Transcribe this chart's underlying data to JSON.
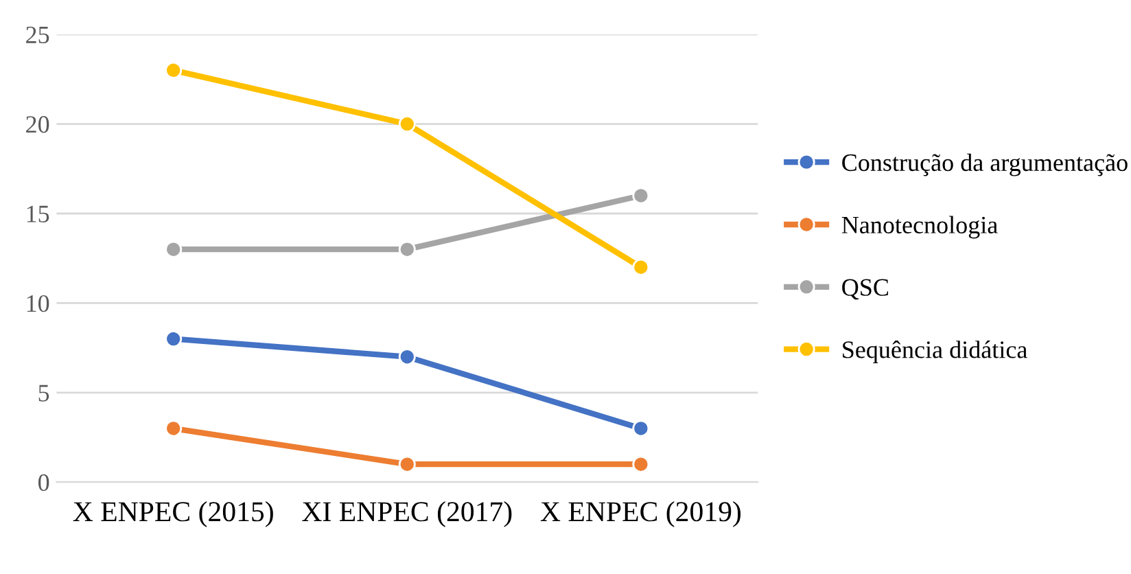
{
  "chart_data": {
    "type": "line",
    "categories": [
      "X ENPEC (2015)",
      "XI ENPEC (2017)",
      "X ENPEC (2019)"
    ],
    "series": [
      {
        "name": "Construção da argumentação",
        "color": "#4472c4",
        "values": [
          8,
          7,
          3
        ]
      },
      {
        "name": "Nanotecnologia",
        "color": "#ed7d31",
        "values": [
          3,
          1,
          1
        ]
      },
      {
        "name": "QSC",
        "color": "#a5a5a5",
        "values": [
          13,
          13,
          16
        ]
      },
      {
        "name": "Sequência didática",
        "color": "#ffc000",
        "values": [
          23,
          20,
          12
        ]
      }
    ],
    "ylim": [
      0,
      25
    ],
    "yticks": [
      0,
      5,
      10,
      15,
      20,
      25
    ],
    "grid": "y",
    "legend": "right",
    "marker": "circle",
    "line_style": "solid"
  }
}
